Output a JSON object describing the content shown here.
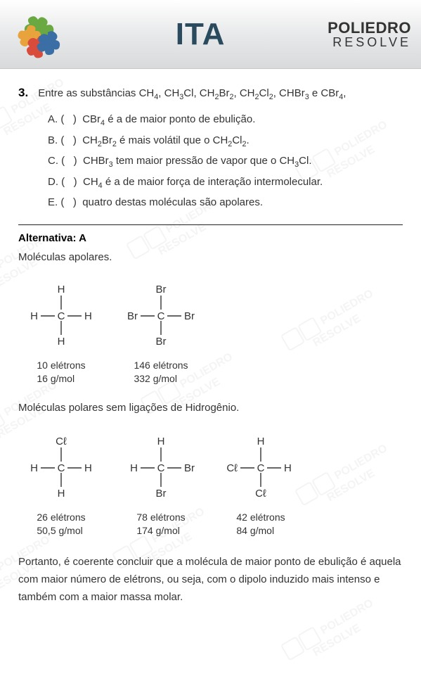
{
  "header": {
    "center_text": "ITA",
    "center_color": "#2a4a5e",
    "right_line1": "POLIEDRO",
    "right_line2": "RESOLVE",
    "left_logo_colors": [
      "#6aa842",
      "#e8a33d",
      "#d94b3a",
      "#3a6ea5",
      "#2c8c5a"
    ]
  },
  "question": {
    "number": "3.",
    "stem_html": "Entre as substâncias CH<sub>4</sub>, CH<sub>3</sub>Cl, CH<sub>2</sub>Br<sub>2</sub>, CH<sub>2</sub>Cl<sub>2</sub>, CHBr<sub>3</sub> e CBr<sub>4</sub>,",
    "options": [
      {
        "letter": "A.",
        "text_html": "CBr<sub>4</sub> é a de maior ponto de ebulição."
      },
      {
        "letter": "B.",
        "text_html": "CH<sub>2</sub>Br<sub>2</sub> é mais volátil que o CH<sub>2</sub>Cl<sub>2</sub>."
      },
      {
        "letter": "C.",
        "text_html": "CHBr<sub>3</sub> tem maior pressão de vapor que o CH<sub>3</sub>Cl."
      },
      {
        "letter": "D.",
        "text_html": "CH<sub>4</sub> é a de maior força de interação intermolecular."
      },
      {
        "letter": "E.",
        "text_html": "quatro destas moléculas são apolares."
      }
    ]
  },
  "answer": {
    "label_prefix": "Alternativa: ",
    "letter": "A"
  },
  "section_apolar": {
    "heading": "Moléculas apolares.",
    "molecules": [
      {
        "center": "C",
        "top": "H",
        "bottom": "H",
        "left": "H",
        "right": "H",
        "electrons": "10 elétrons",
        "mass": "16 g/mol"
      },
      {
        "center": "C",
        "top": "Br",
        "bottom": "Br",
        "left": "Br",
        "right": "Br",
        "electrons": "146 elétrons",
        "mass": "332 g/mol"
      }
    ]
  },
  "section_polar": {
    "heading": "Moléculas polares sem ligações de Hidrogênio.",
    "molecules": [
      {
        "center": "C",
        "top": "Cℓ",
        "bottom": "H",
        "left": "H",
        "right": "H",
        "electrons": "26 elétrons",
        "mass": "50,5 g/mol"
      },
      {
        "center": "C",
        "top": "H",
        "bottom": "Br",
        "left": "H",
        "right": "Br",
        "electrons": "78 elétrons",
        "mass": "174 g/mol"
      },
      {
        "center": "C",
        "top": "H",
        "bottom": "Cℓ",
        "left": "Cℓ",
        "right": "H",
        "electrons": "42 elétrons",
        "mass": "84 g/mol"
      }
    ]
  },
  "conclusion": "Portanto, é coerente concluir que a molécula de maior ponto de ebulição é aquela com maior número de elétrons, ou seja, com o dipolo induzido mais intenso e também com a maior massa molar.",
  "watermark_text": "POLIEDRO\nRESOLVE",
  "colors": {
    "text": "#333333",
    "black": "#000000",
    "divider": "#222222",
    "header_gradient": [
      "#ffffff",
      "#e8e9ea",
      "#d8dadb"
    ]
  }
}
